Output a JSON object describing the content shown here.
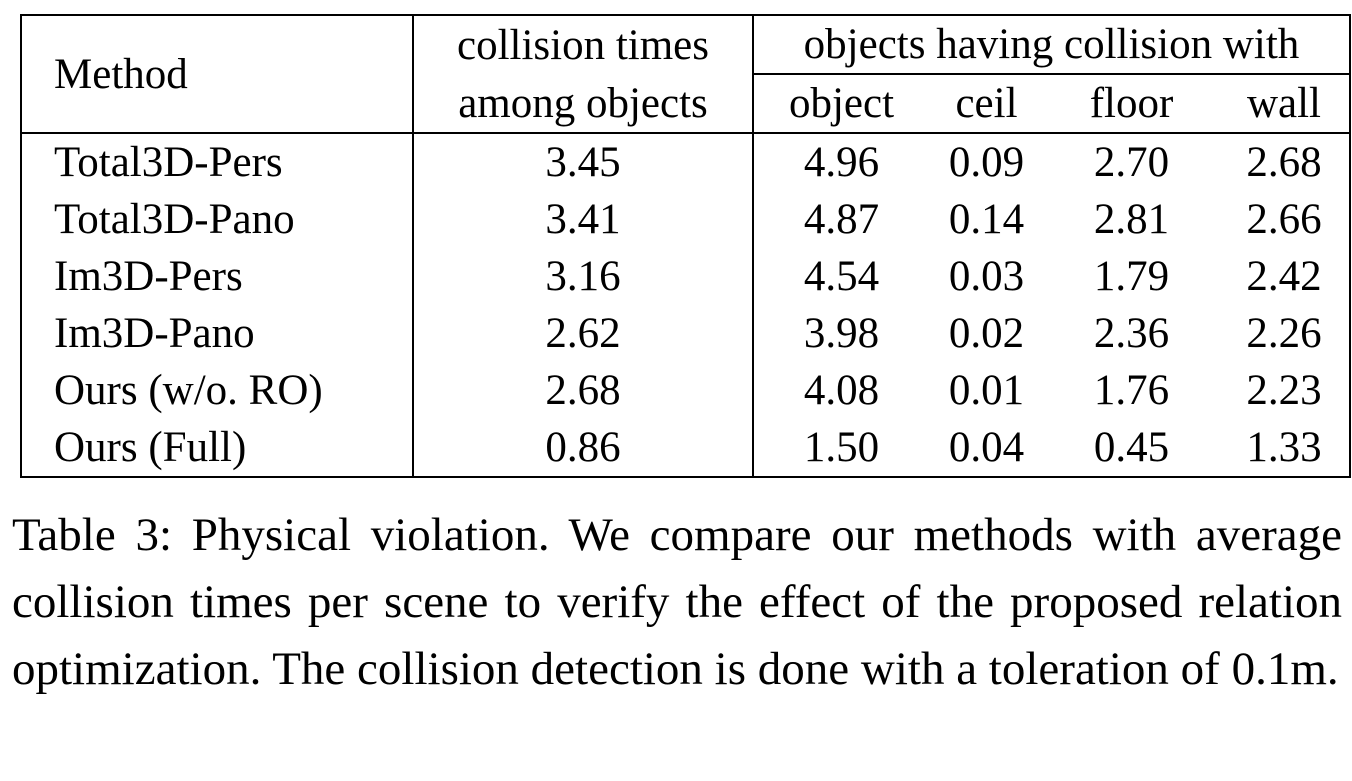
{
  "table": {
    "headers": {
      "method": "Method",
      "collision_line1": "collision times",
      "collision_line2": "among objects",
      "group": "objects having collision with",
      "object": "object",
      "ceil": "ceil",
      "floor": "floor",
      "wall": "wall"
    },
    "rows": [
      {
        "method": "Total3D-Pers",
        "collision": "3.45",
        "object": "4.96",
        "ceil": "0.09",
        "floor": "2.70",
        "wall": "2.68"
      },
      {
        "method": "Total3D-Pano",
        "collision": "3.41",
        "object": "4.87",
        "ceil": "0.14",
        "floor": "2.81",
        "wall": "2.66"
      },
      {
        "method": "Im3D-Pers",
        "collision": "3.16",
        "object": "4.54",
        "ceil": "0.03",
        "floor": "1.79",
        "wall": "2.42"
      },
      {
        "method": "Im3D-Pano",
        "collision": "2.62",
        "object": "3.98",
        "ceil": "0.02",
        "floor": "2.36",
        "wall": "2.26"
      },
      {
        "method": "Ours (w/o. RO)",
        "collision": "2.68",
        "object": "4.08",
        "ceil": "0.01",
        "floor": "1.76",
        "wall": "2.23"
      },
      {
        "method": "Ours (Full)",
        "collision": "0.86",
        "object": "1.50",
        "ceil": "0.04",
        "floor": "0.45",
        "wall": "1.33"
      }
    ]
  },
  "caption": "Table 3: Physical violation. We compare our methods with average collision times per scene to verify the effect of the proposed relation optimization. The collision detection is done with a toleration of 0.1m."
}
